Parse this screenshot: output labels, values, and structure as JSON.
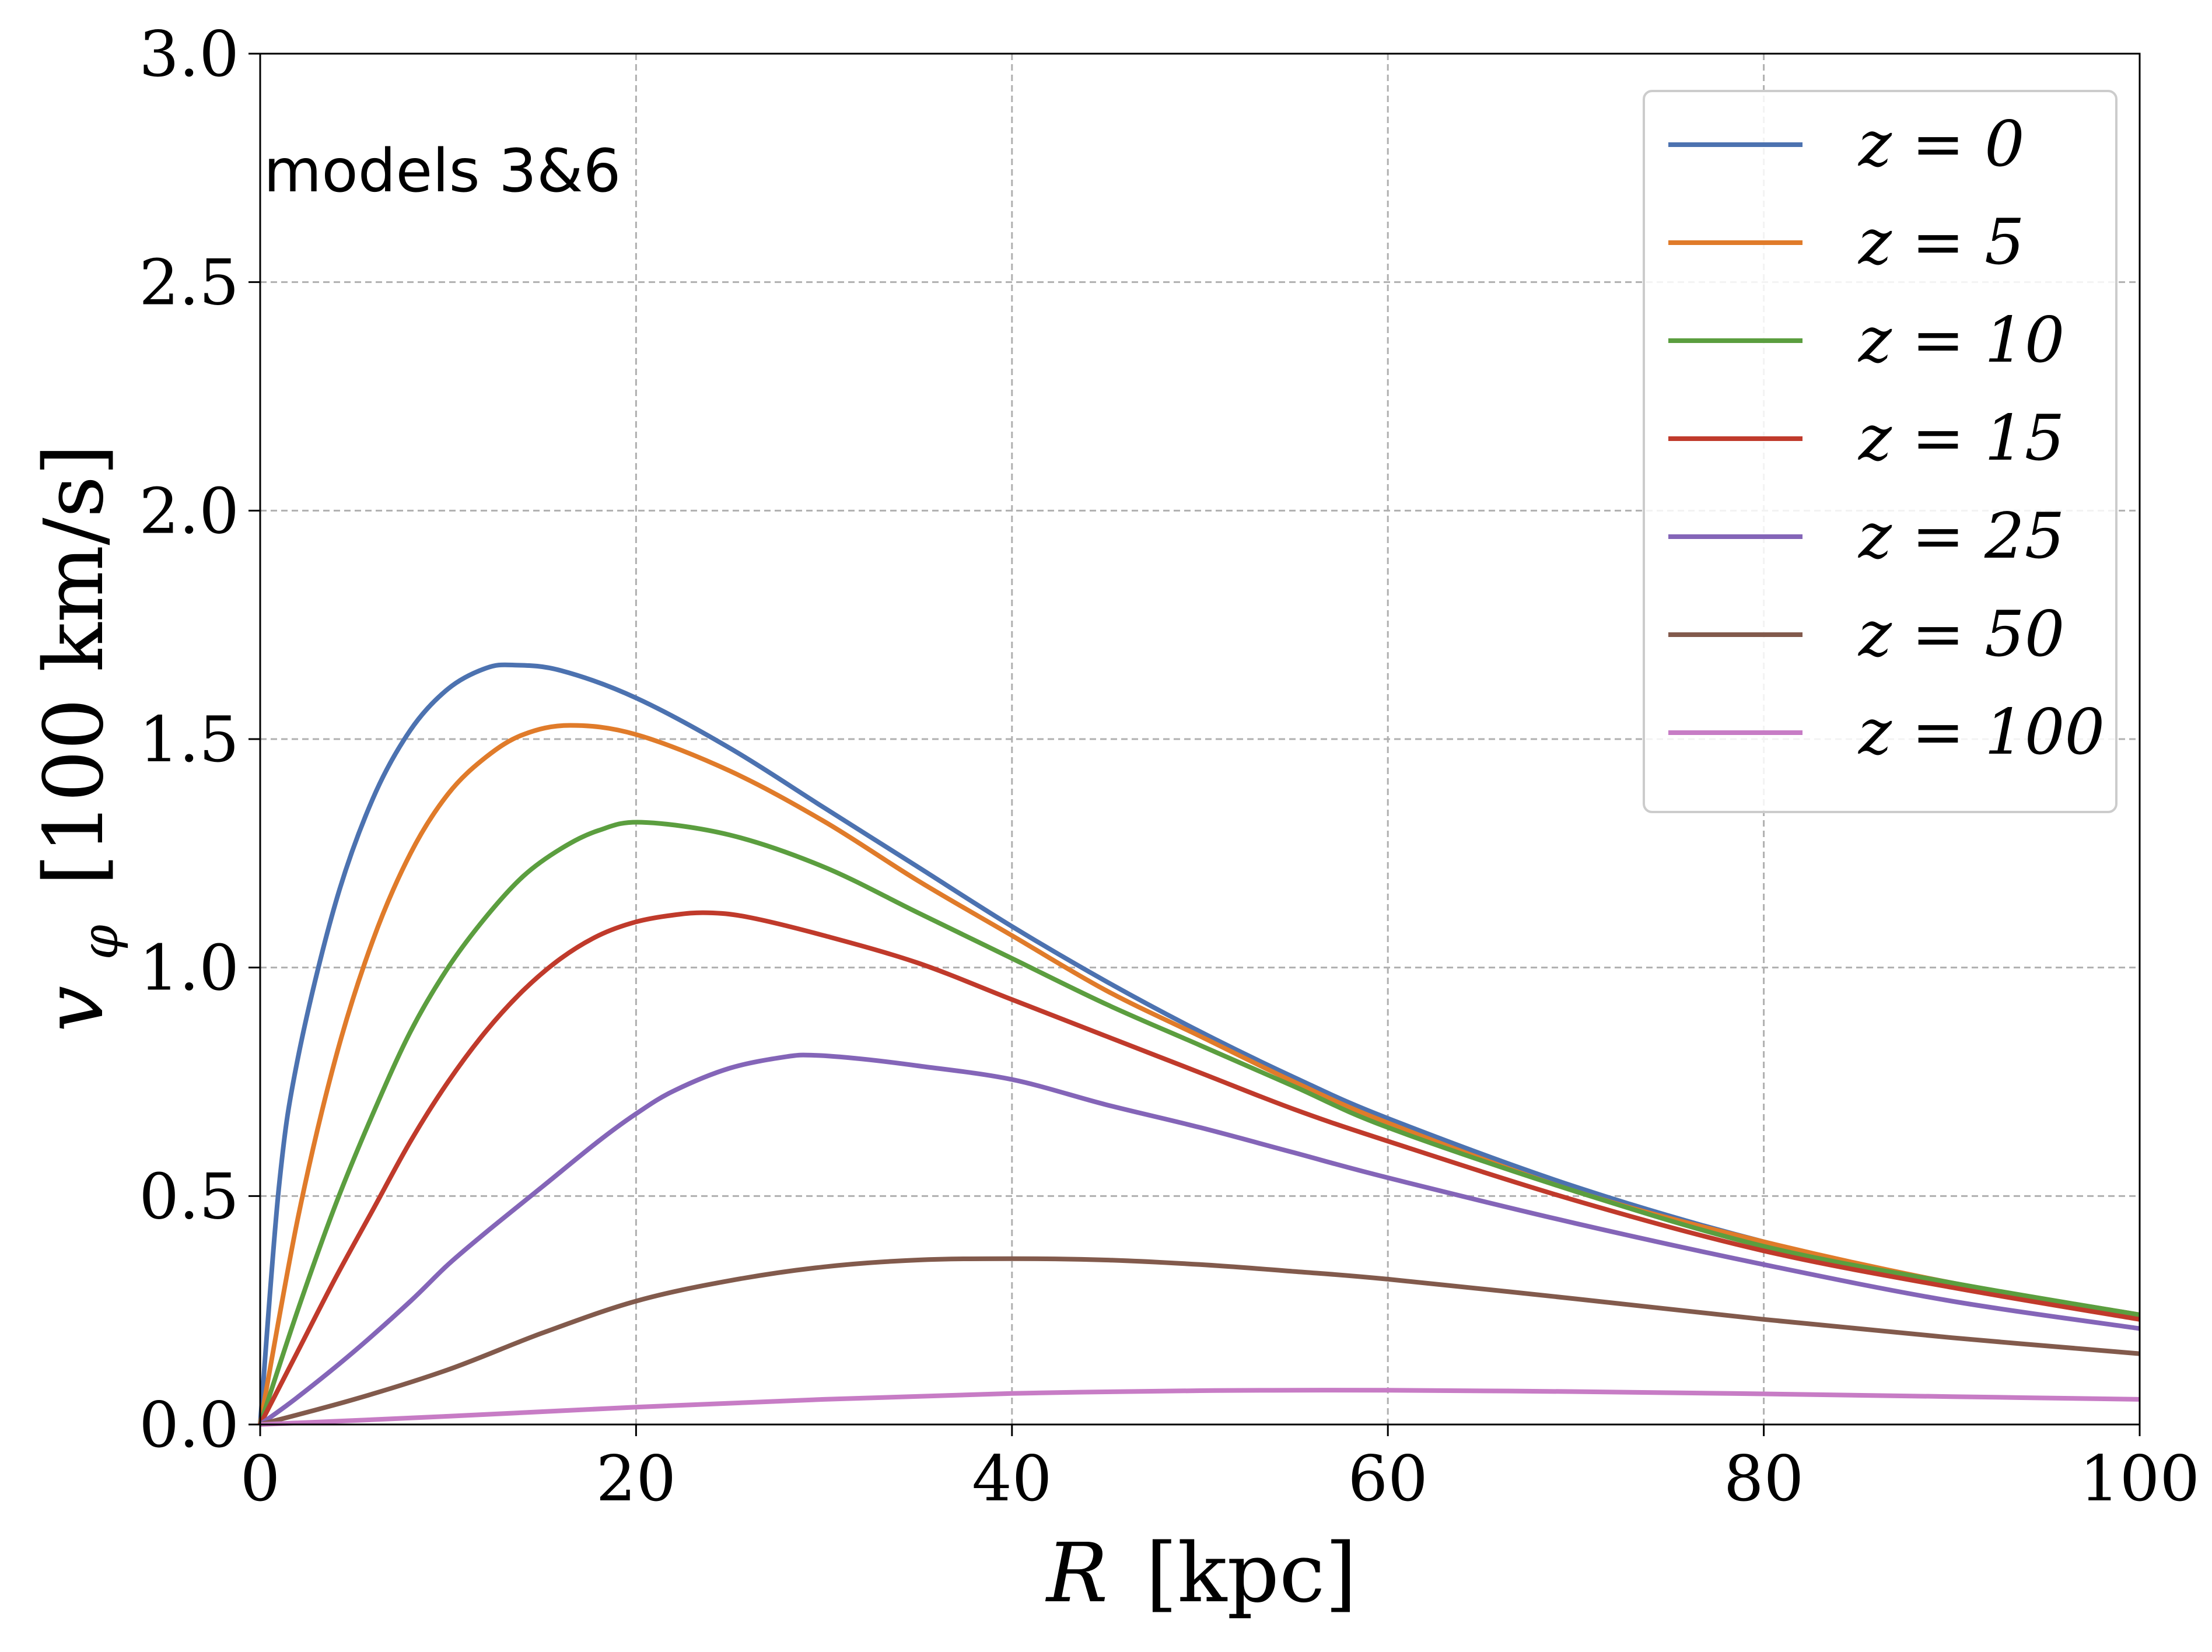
{
  "chart_data": {
    "type": "line",
    "annotation": "models 3&6",
    "xlabel": {
      "symbol": "R",
      "unit": "[kpc]"
    },
    "ylabel": {
      "symbol": "v",
      "subscript": "φ",
      "unit": "[100 km/s]"
    },
    "xlim": [
      0,
      100
    ],
    "ylim": [
      0,
      3.0
    ],
    "xticks": [
      0,
      20,
      40,
      60,
      80,
      100
    ],
    "xtick_labels": [
      "0",
      "20",
      "40",
      "60",
      "80",
      "100"
    ],
    "yticks": [
      0,
      0.5,
      1.0,
      1.5,
      2.0,
      2.5,
      3.0
    ],
    "ytick_labels": [
      "0.0",
      "0.5",
      "1.0",
      "1.5",
      "2.0",
      "2.5",
      "3.0"
    ],
    "grid": true,
    "legend_position": "top-right",
    "series": [
      {
        "name": "z = 0",
        "color": "#4c72b0",
        "x": [
          0,
          1,
          2,
          4,
          6,
          8,
          10,
          12,
          13.5,
          16,
          20,
          25,
          30,
          35,
          40,
          45,
          50,
          55,
          60,
          70,
          80,
          90,
          100
        ],
        "y": [
          0,
          0.52,
          0.8,
          1.14,
          1.37,
          1.52,
          1.61,
          1.655,
          1.662,
          1.65,
          1.59,
          1.48,
          1.35,
          1.22,
          1.09,
          0.97,
          0.86,
          0.76,
          0.67,
          0.52,
          0.4,
          0.31,
          0.24
        ]
      },
      {
        "name": "z = 5",
        "color": "#e07b2a",
        "x": [
          0,
          2,
          4,
          6,
          8,
          10,
          12,
          14,
          16.5,
          20,
          25,
          30,
          35,
          40,
          45,
          50,
          55,
          60,
          70,
          80,
          90,
          100
        ],
        "y": [
          0,
          0.45,
          0.8,
          1.06,
          1.25,
          1.38,
          1.46,
          1.51,
          1.53,
          1.51,
          1.43,
          1.32,
          1.19,
          1.07,
          0.95,
          0.85,
          0.75,
          0.66,
          0.51,
          0.4,
          0.31,
          0.24
        ]
      },
      {
        "name": "z = 10",
        "color": "#5b9e3f",
        "x": [
          0,
          2,
          4,
          6,
          8,
          10,
          12,
          14,
          16,
          18,
          20.3,
          25,
          30,
          35,
          40,
          45,
          50,
          55,
          60,
          70,
          80,
          90,
          100
        ],
        "y": [
          0,
          0.25,
          0.48,
          0.68,
          0.86,
          1.0,
          1.11,
          1.2,
          1.26,
          1.3,
          1.318,
          1.29,
          1.22,
          1.12,
          1.02,
          0.92,
          0.83,
          0.74,
          0.65,
          0.51,
          0.39,
          0.31,
          0.24
        ]
      },
      {
        "name": "z = 15",
        "color": "#c03a2b",
        "x": [
          0,
          2,
          4,
          6,
          8,
          10,
          12,
          14,
          16,
          18,
          20,
          22,
          23.8,
          26,
          30,
          35,
          40,
          45,
          50,
          55,
          60,
          70,
          80,
          90,
          100
        ],
        "y": [
          0,
          0.16,
          0.32,
          0.47,
          0.62,
          0.75,
          0.86,
          0.95,
          1.02,
          1.07,
          1.1,
          1.115,
          1.12,
          1.11,
          1.07,
          1.01,
          0.93,
          0.85,
          0.77,
          0.69,
          0.62,
          0.49,
          0.38,
          0.3,
          0.23
        ]
      },
      {
        "name": "z = 25",
        "color": "#8465b8",
        "x": [
          0,
          2,
          5,
          8,
          10,
          12,
          15,
          18,
          20,
          22,
          25,
          28,
          29.5,
          32,
          35,
          40,
          45,
          50,
          55,
          60,
          70,
          80,
          90,
          100
        ],
        "y": [
          0,
          0.06,
          0.16,
          0.27,
          0.35,
          0.42,
          0.52,
          0.62,
          0.68,
          0.73,
          0.78,
          0.805,
          0.808,
          0.8,
          0.785,
          0.755,
          0.7,
          0.65,
          0.595,
          0.54,
          0.44,
          0.35,
          0.27,
          0.21
        ]
      },
      {
        "name": "z = 50",
        "color": "#825a4c",
        "x": [
          0,
          5,
          10,
          15,
          20,
          25,
          30,
          35,
          40,
          45,
          50,
          55,
          60,
          70,
          80,
          90,
          100
        ],
        "y": [
          0,
          0.055,
          0.12,
          0.2,
          0.27,
          0.315,
          0.345,
          0.36,
          0.363,
          0.36,
          0.35,
          0.335,
          0.318,
          0.275,
          0.23,
          0.19,
          0.155
        ]
      },
      {
        "name": "z = 100",
        "color": "#c77cc5",
        "x": [
          0,
          10,
          20,
          30,
          40,
          50,
          55,
          60,
          70,
          80,
          90,
          100
        ],
        "y": [
          0,
          0.018,
          0.038,
          0.055,
          0.068,
          0.074,
          0.075,
          0.075,
          0.072,
          0.067,
          0.061,
          0.055
        ]
      }
    ]
  }
}
